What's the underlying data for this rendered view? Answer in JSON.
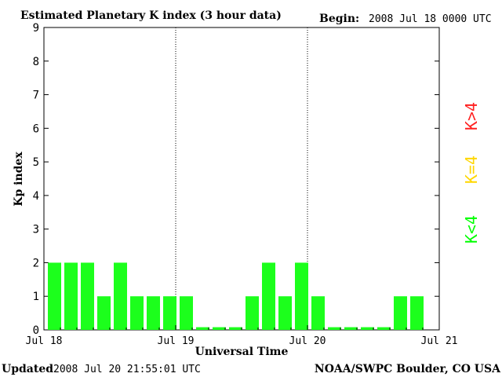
{
  "header": {
    "title": "Estimated Planetary K index (3 hour data)",
    "begin_label": "Begin:",
    "begin_value": "2008 Jul 18 0000 UTC"
  },
  "footer": {
    "updated_label": "Updated",
    "updated_value": "2008 Jul 20 21:55:01 UTC",
    "source": "NOAA/SWPC Boulder, CO USA"
  },
  "legend": {
    "items": [
      {
        "label": "K<4",
        "color": "#00ff00"
      },
      {
        "label": "K=4",
        "color": "#ffd700"
      },
      {
        "label": "K>4",
        "color": "#ff2020"
      }
    ]
  },
  "colors": {
    "bar": "#1cff1c",
    "axis": "#000000",
    "background": "#ffffff"
  },
  "chart_data": {
    "type": "bar",
    "title": "Estimated Planetary K index (3 hour data)",
    "xlabel": "Universal Time",
    "ylabel": "Kp index",
    "ylim": [
      0,
      9
    ],
    "yticks": [
      0,
      1,
      2,
      3,
      4,
      5,
      6,
      7,
      8,
      9
    ],
    "xlim": [
      "2008-07-18T00:00Z",
      "2008-07-21T00:00Z"
    ],
    "xticks": [
      "Jul 18",
      "Jul 19",
      "Jul 20",
      "Jul 21"
    ],
    "day_dividers": [
      "Jul 19",
      "Jul 20"
    ],
    "bin_hours": 3,
    "series": [
      {
        "name": "Kp",
        "values": [
          2,
          2,
          2,
          1,
          2,
          1,
          1,
          1,
          1,
          0,
          0,
          0,
          1,
          2,
          1,
          2,
          1,
          0,
          0,
          0,
          0,
          1,
          1
        ]
      }
    ]
  }
}
